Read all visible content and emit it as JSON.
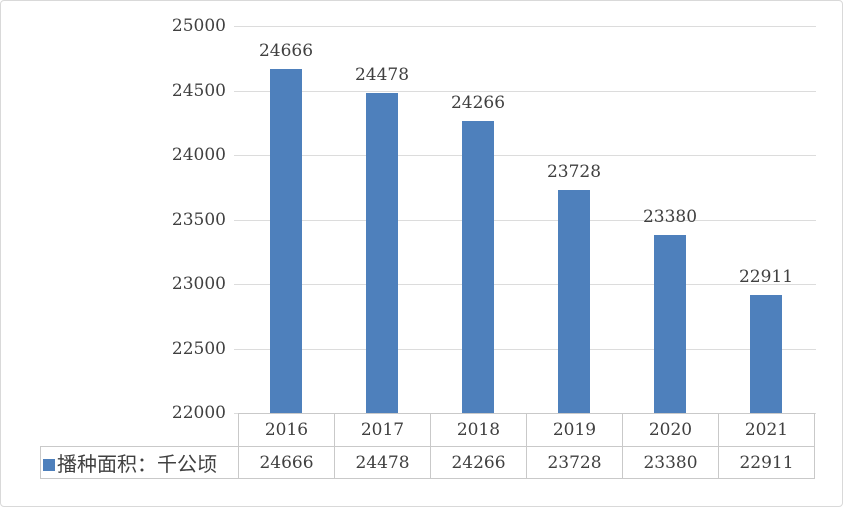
{
  "chart_data": {
    "type": "bar",
    "title": "",
    "xlabel": "",
    "ylabel": "",
    "categories": [
      "2016",
      "2017",
      "2018",
      "2019",
      "2020",
      "2021"
    ],
    "series": [
      {
        "name": "播种面积：千公顷",
        "values": [
          24666,
          24478,
          24266,
          23728,
          23380,
          22911
        ]
      }
    ],
    "ylim": [
      22000,
      25000
    ],
    "yticks": [
      25000,
      24500,
      24000,
      23500,
      23000,
      22500,
      22000
    ],
    "grid": true,
    "data_labels": true,
    "data_table": true,
    "legend_position": "bottom-left-of-data-table"
  },
  "legend": {
    "label": "播种面积：千公顷"
  },
  "colors": {
    "bar": "#4E80BC",
    "gridline": "#DCDCDC",
    "table_border": "#C9C9C9",
    "text": "#404040",
    "frame_border": "#D9D9D9",
    "background": "#FFFFFF"
  }
}
